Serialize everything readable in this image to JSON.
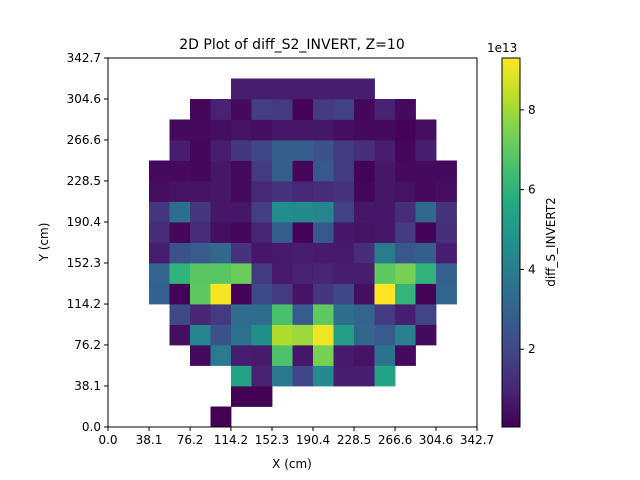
{
  "chart_data": {
    "type": "heatmap",
    "title": "2D Plot of diff_S2_INVERT, Z=10",
    "xlabel": "X (cm)",
    "ylabel": "Y (cm)",
    "xlim": [
      0.0,
      342.7
    ],
    "ylim": [
      0.0,
      342.7
    ],
    "xticks": [
      "0.0",
      "38.1",
      "76.2",
      "114.2",
      "152.3",
      "190.4",
      "228.5",
      "266.6",
      "304.6",
      "342.7"
    ],
    "yticks": [
      "0.0",
      "38.1",
      "76.2",
      "114.2",
      "152.3",
      "190.4",
      "228.5",
      "266.6",
      "304.6",
      "342.7"
    ],
    "grid": false,
    "colorbar": {
      "label": "diff_S_INVERT2",
      "offset_text": "1e13",
      "ticks": [
        "2",
        "4",
        "6",
        "8"
      ],
      "tick_values": [
        2,
        4,
        6,
        8
      ],
      "range": [
        0.05,
        9.3
      ],
      "colormap": "viridis"
    },
    "cell_size": 19.04,
    "rows_from_bottom": [
      [
        null,
        null,
        null,
        null,
        null,
        0,
        null,
        null,
        null,
        null,
        null,
        null,
        null,
        null,
        null,
        null,
        null,
        null
      ],
      [
        null,
        null,
        null,
        null,
        null,
        null,
        0,
        0,
        null,
        null,
        null,
        null,
        null,
        null,
        null,
        null,
        null,
        null
      ],
      [
        null,
        null,
        null,
        null,
        null,
        null,
        5.4,
        0.9,
        3.8,
        2.0,
        4.4,
        0.8,
        0.8,
        5.4,
        null,
        null,
        null,
        null
      ],
      [
        null,
        null,
        null,
        null,
        0.3,
        3.9,
        0.8,
        0.7,
        6.7,
        0.6,
        7.4,
        0.7,
        0.5,
        3.6,
        0.3,
        null,
        null,
        null
      ],
      [
        null,
        null,
        null,
        0.4,
        4.2,
        2.4,
        3.5,
        4.6,
        8.2,
        7.9,
        9.1,
        5.2,
        3.1,
        2.7,
        4.0,
        0.3,
        null,
        null
      ],
      [
        null,
        null,
        null,
        2.1,
        1.0,
        1.6,
        3.3,
        3.3,
        6.6,
        2.7,
        7.0,
        3.4,
        3.0,
        1.6,
        0.8,
        1.9,
        null,
        null
      ],
      [
        null,
        null,
        2.9,
        0.1,
        7.0,
        9.2,
        0.1,
        2.1,
        1.6,
        0.5,
        1.5,
        2.0,
        0.4,
        9.3,
        6.1,
        0.1,
        3.0,
        null
      ],
      [
        null,
        null,
        3.0,
        6.0,
        6.9,
        6.9,
        7.2,
        1.6,
        0.7,
        0.9,
        1.0,
        0.8,
        0.8,
        7.0,
        7.4,
        6.0,
        2.9,
        null
      ],
      [
        null,
        null,
        0.8,
        2.3,
        2.7,
        3.2,
        1.4,
        0.6,
        0.7,
        0.8,
        0.7,
        0.7,
        1.2,
        3.9,
        2.6,
        2.8,
        0.8,
        null
      ],
      [
        null,
        null,
        1.2,
        0.2,
        1.2,
        0.4,
        0.2,
        1.0,
        2.8,
        0.1,
        2.6,
        0.6,
        0.5,
        0.6,
        1.6,
        0.1,
        1.3,
        null
      ],
      [
        null,
        null,
        1.5,
        3.4,
        1.5,
        0.6,
        0.6,
        1.7,
        4.5,
        4.4,
        4.3,
        1.8,
        0.6,
        0.6,
        1.2,
        3.2,
        1.4,
        null
      ],
      [
        null,
        null,
        0.4,
        0.5,
        0.5,
        0.6,
        0.3,
        1.1,
        1.4,
        1.1,
        1.2,
        1.4,
        0.2,
        0.6,
        0.5,
        0.3,
        0.4,
        null
      ],
      [
        null,
        null,
        0.3,
        0.3,
        0.2,
        0.6,
        0.3,
        1.6,
        2.8,
        0.2,
        2.6,
        1.6,
        0.1,
        0.6,
        0.3,
        0.3,
        0.3,
        null
      ],
      [
        null,
        null,
        null,
        0.8,
        0.2,
        0.8,
        1.5,
        2.0,
        2.8,
        2.8,
        2.4,
        1.6,
        1.3,
        0.8,
        0.2,
        0.8,
        null,
        null
      ],
      [
        null,
        null,
        null,
        0.3,
        0.3,
        0.4,
        0.5,
        0.4,
        0.6,
        0.6,
        0.6,
        0.4,
        0.3,
        0.3,
        0.1,
        0.4,
        null,
        null
      ],
      [
        null,
        null,
        null,
        null,
        0.2,
        0.9,
        0.3,
        1.7,
        1.6,
        0.1,
        1.6,
        1.8,
        0.2,
        0.9,
        0.3,
        null,
        null,
        null
      ],
      [
        null,
        null,
        null,
        null,
        null,
        null,
        0.8,
        0.8,
        0.8,
        0.8,
        0.8,
        0.8,
        0.8,
        null,
        null,
        null,
        null,
        null
      ],
      [
        null,
        null,
        null,
        null,
        null,
        null,
        null,
        null,
        null,
        null,
        null,
        null,
        null,
        null,
        null,
        null,
        null,
        null
      ]
    ]
  }
}
